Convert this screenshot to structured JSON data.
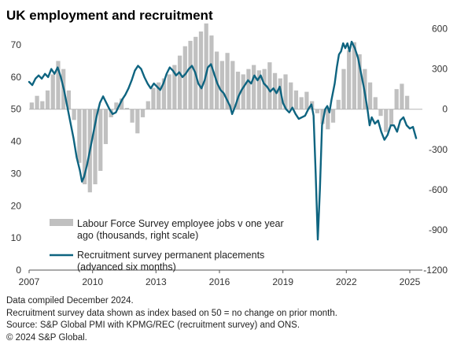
{
  "chart_data": {
    "type": "bar+line",
    "title": "UK employment and recruitment",
    "x_range": [
      2007.0,
      2025.5
    ],
    "x_ticks": [
      "2007",
      "2010",
      "2013",
      "2016",
      "2019",
      "2022",
      "2025"
    ],
    "y_left": {
      "ticks": [
        "0",
        "10",
        "20",
        "30",
        "40",
        "50",
        "60",
        "70"
      ],
      "range": [
        0,
        75
      ],
      "baseline": 50
    },
    "y_right": {
      "ticks": [
        "600",
        "300",
        "0",
        "-300",
        "-600",
        "-900",
        "-1200"
      ],
      "range": [
        -1200,
        750
      ]
    },
    "grid": false,
    "legend_position": "bottom-left",
    "series": [
      {
        "name": "Labour Force Survey employee jobs v one year ago (thousands, right scale)",
        "legend_lines": [
          "Labour Force Survey employee jobs v one year",
          "ago (thousands, right scale)"
        ],
        "type": "bar",
        "axis": "right",
        "color": "#c0c0c0",
        "points": [
          [
            2007.0,
            50
          ],
          [
            2007.25,
            100
          ],
          [
            2007.5,
            60
          ],
          [
            2007.75,
            140
          ],
          [
            2008.0,
            260
          ],
          [
            2008.25,
            360
          ],
          [
            2008.5,
            300
          ],
          [
            2008.75,
            140
          ],
          [
            2009.0,
            -80
          ],
          [
            2009.25,
            -400
          ],
          [
            2009.5,
            -560
          ],
          [
            2009.75,
            -620
          ],
          [
            2010.0,
            -560
          ],
          [
            2010.25,
            -460
          ],
          [
            2010.5,
            -260
          ],
          [
            2010.75,
            -60
          ],
          [
            2011.0,
            50
          ],
          [
            2011.25,
            80
          ],
          [
            2011.5,
            10
          ],
          [
            2011.75,
            -100
          ],
          [
            2012.0,
            -180
          ],
          [
            2012.25,
            -60
          ],
          [
            2012.5,
            60
          ],
          [
            2012.75,
            160
          ],
          [
            2013.0,
            200
          ],
          [
            2013.25,
            230
          ],
          [
            2013.5,
            260
          ],
          [
            2013.75,
            330
          ],
          [
            2014.0,
            400
          ],
          [
            2014.25,
            470
          ],
          [
            2014.5,
            510
          ],
          [
            2014.75,
            540
          ],
          [
            2015.0,
            580
          ],
          [
            2015.25,
            640
          ],
          [
            2015.5,
            550
          ],
          [
            2015.75,
            430
          ],
          [
            2016.0,
            360
          ],
          [
            2016.25,
            420
          ],
          [
            2016.5,
            360
          ],
          [
            2016.75,
            280
          ],
          [
            2017.0,
            260
          ],
          [
            2017.25,
            300
          ],
          [
            2017.5,
            330
          ],
          [
            2017.75,
            290
          ],
          [
            2018.0,
            300
          ],
          [
            2018.25,
            350
          ],
          [
            2018.5,
            270
          ],
          [
            2018.75,
            230
          ],
          [
            2019.0,
            260
          ],
          [
            2019.25,
            200
          ],
          [
            2019.5,
            140
          ],
          [
            2019.75,
            90
          ],
          [
            2020.0,
            130
          ],
          [
            2020.25,
            60
          ],
          [
            2020.5,
            -30
          ],
          [
            2020.75,
            -110
          ],
          [
            2021.0,
            -150
          ],
          [
            2021.25,
            -100
          ],
          [
            2021.5,
            70
          ],
          [
            2021.75,
            300
          ],
          [
            2022.0,
            440
          ],
          [
            2022.25,
            500
          ],
          [
            2022.5,
            410
          ],
          [
            2022.75,
            300
          ],
          [
            2023.0,
            200
          ],
          [
            2023.25,
            90
          ],
          [
            2023.5,
            -50
          ],
          [
            2023.75,
            -170
          ],
          [
            2024.0,
            -120
          ],
          [
            2024.25,
            150
          ],
          [
            2024.5,
            190
          ],
          [
            2024.75,
            100
          ]
        ]
      },
      {
        "name": "Recruitment survey permanent placements (advanced six months)",
        "legend_lines": [
          "Recruitment survey permanent placements",
          "(advanced six months)"
        ],
        "type": "line",
        "axis": "left",
        "color": "#0e6480",
        "points": [
          [
            2007.0,
            58.5
          ],
          [
            2007.15,
            57.5
          ],
          [
            2007.3,
            59.5
          ],
          [
            2007.45,
            60.5
          ],
          [
            2007.6,
            59.5
          ],
          [
            2007.75,
            61.0
          ],
          [
            2007.9,
            60.0
          ],
          [
            2008.05,
            62.5
          ],
          [
            2008.2,
            61.0
          ],
          [
            2008.35,
            63.0
          ],
          [
            2008.5,
            60.0
          ],
          [
            2008.65,
            56.0
          ],
          [
            2008.8,
            51.0
          ],
          [
            2008.95,
            46.0
          ],
          [
            2009.1,
            41.0
          ],
          [
            2009.25,
            35.0
          ],
          [
            2009.4,
            31.0
          ],
          [
            2009.5,
            27.5
          ],
          [
            2009.6,
            29.0
          ],
          [
            2009.75,
            33.0
          ],
          [
            2009.9,
            38.0
          ],
          [
            2010.05,
            43.0
          ],
          [
            2010.2,
            48.0
          ],
          [
            2010.35,
            52.0
          ],
          [
            2010.5,
            54.0
          ],
          [
            2010.65,
            52.0
          ],
          [
            2010.8,
            50.0
          ],
          [
            2010.95,
            48.5
          ],
          [
            2011.1,
            49.0
          ],
          [
            2011.25,
            51.0
          ],
          [
            2011.4,
            53.0
          ],
          [
            2011.55,
            54.5
          ],
          [
            2011.7,
            56.5
          ],
          [
            2011.85,
            59.0
          ],
          [
            2012.0,
            62.0
          ],
          [
            2012.15,
            63.5
          ],
          [
            2012.3,
            62.5
          ],
          [
            2012.45,
            60.0
          ],
          [
            2012.6,
            58.0
          ],
          [
            2012.75,
            56.5
          ],
          [
            2012.9,
            58.0
          ],
          [
            2013.05,
            57.0
          ],
          [
            2013.2,
            56.0
          ],
          [
            2013.35,
            58.0
          ],
          [
            2013.5,
            61.0
          ],
          [
            2013.65,
            63.0
          ],
          [
            2013.8,
            62.0
          ],
          [
            2013.95,
            60.5
          ],
          [
            2014.1,
            61.5
          ],
          [
            2014.25,
            60.0
          ],
          [
            2014.4,
            61.0
          ],
          [
            2014.55,
            62.5
          ],
          [
            2014.7,
            63.5
          ],
          [
            2014.85,
            61.5
          ],
          [
            2015.0,
            58.0
          ],
          [
            2015.15,
            56.5
          ],
          [
            2015.3,
            59.0
          ],
          [
            2015.45,
            63.0
          ],
          [
            2015.6,
            64.0
          ],
          [
            2015.75,
            61.0
          ],
          [
            2015.9,
            58.0
          ],
          [
            2016.05,
            56.0
          ],
          [
            2016.2,
            55.0
          ],
          [
            2016.35,
            53.0
          ],
          [
            2016.5,
            51.0
          ],
          [
            2016.6,
            48.5
          ],
          [
            2016.75,
            51.0
          ],
          [
            2016.9,
            54.0
          ],
          [
            2017.05,
            56.0
          ],
          [
            2017.2,
            57.5
          ],
          [
            2017.35,
            59.0
          ],
          [
            2017.5,
            58.0
          ],
          [
            2017.65,
            60.5
          ],
          [
            2017.8,
            59.0
          ],
          [
            2017.95,
            60.5
          ],
          [
            2018.1,
            58.0
          ],
          [
            2018.25,
            57.0
          ],
          [
            2018.4,
            55.5
          ],
          [
            2018.55,
            56.5
          ],
          [
            2018.7,
            55.0
          ],
          [
            2018.85,
            57.0
          ],
          [
            2019.0,
            52.0
          ],
          [
            2019.15,
            50.0
          ],
          [
            2019.3,
            49.0
          ],
          [
            2019.45,
            50.5
          ],
          [
            2019.6,
            48.5
          ],
          [
            2019.75,
            47.0
          ],
          [
            2019.9,
            47.5
          ],
          [
            2020.05,
            48.0
          ],
          [
            2020.2,
            50.0
          ],
          [
            2020.35,
            51.5
          ],
          [
            2020.45,
            48.0
          ],
          [
            2020.55,
            30.0
          ],
          [
            2020.65,
            9.5
          ],
          [
            2020.75,
            25.0
          ],
          [
            2020.85,
            45.0
          ],
          [
            2021.0,
            50.0
          ],
          [
            2021.1,
            51.0
          ],
          [
            2021.2,
            49.0
          ],
          [
            2021.3,
            53.0
          ],
          [
            2021.45,
            58.0
          ],
          [
            2021.55,
            63.0
          ],
          [
            2021.65,
            67.0
          ],
          [
            2021.75,
            68.0
          ],
          [
            2021.85,
            70.5
          ],
          [
            2021.95,
            69.0
          ],
          [
            2022.05,
            70.5
          ],
          [
            2022.15,
            68.0
          ],
          [
            2022.25,
            71.0
          ],
          [
            2022.4,
            69.0
          ],
          [
            2022.55,
            66.0
          ],
          [
            2022.7,
            61.0
          ],
          [
            2022.85,
            56.0
          ],
          [
            2023.0,
            50.0
          ],
          [
            2023.1,
            45.0
          ],
          [
            2023.2,
            47.5
          ],
          [
            2023.35,
            45.5
          ],
          [
            2023.5,
            46.5
          ],
          [
            2023.65,
            43.0
          ],
          [
            2023.8,
            40.5
          ],
          [
            2023.95,
            42.0
          ],
          [
            2024.1,
            45.0
          ],
          [
            2024.25,
            45.0
          ],
          [
            2024.4,
            43.0
          ],
          [
            2024.55,
            46.5
          ],
          [
            2024.7,
            47.5
          ],
          [
            2024.85,
            45.0
          ],
          [
            2025.0,
            44.0
          ],
          [
            2025.15,
            44.5
          ],
          [
            2025.3,
            41.0
          ]
        ]
      }
    ]
  },
  "notes": [
    "Data compiled December 2024.",
    "Recruitment survey data shown as index based on 50 = no change on prior month.",
    "Source: S&P Global PMI with KPMG/REC (recruitment survey) and ONS.",
    "© 2024 S&P Global."
  ]
}
